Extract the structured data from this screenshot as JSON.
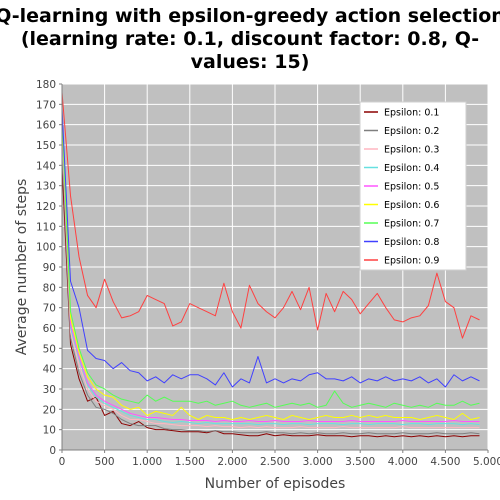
{
  "chart_data": {
    "type": "line",
    "title_lines": [
      "Q-learning with epsilon-greedy action selection",
      "(learning rate: 0.1, discount factor: 0.8, Q-",
      "values: 15)"
    ],
    "xlabel": "Number of episodes",
    "ylabel": "Average number of steps",
    "xlim": [
      0,
      5000
    ],
    "ylim": [
      0,
      180
    ],
    "xticks": [
      0,
      500,
      1000,
      1500,
      2000,
      2500,
      3000,
      3500,
      4000,
      4500,
      5000
    ],
    "xtick_labels": [
      "0",
      "500",
      "1.000",
      "1.500",
      "2.000",
      "2.500",
      "3.000",
      "3.500",
      "4.000",
      "4.500",
      "5.000"
    ],
    "yticks": [
      0,
      10,
      20,
      30,
      40,
      50,
      60,
      70,
      80,
      90,
      100,
      110,
      120,
      130,
      140,
      150,
      160,
      170,
      180
    ],
    "grid": true,
    "legend_position": "top-right",
    "plot_background": "#c0c0c0",
    "x": [
      0,
      100,
      200,
      300,
      400,
      500,
      600,
      700,
      800,
      900,
      1000,
      1100,
      1200,
      1300,
      1400,
      1500,
      1600,
      1700,
      1800,
      1900,
      2000,
      2100,
      2200,
      2300,
      2400,
      2500,
      2600,
      2700,
      2800,
      2900,
      3000,
      3100,
      3200,
      3300,
      3400,
      3500,
      3600,
      3700,
      3800,
      3900,
      4000,
      4100,
      4200,
      4300,
      4400,
      4500,
      4600,
      4700,
      4800,
      4900
    ],
    "series": [
      {
        "name": "Epsilon: 0.1",
        "color": "#8b0000",
        "values": [
          140,
          52,
          35,
          24,
          26,
          17,
          19,
          13,
          12,
          14,
          11,
          10,
          10,
          9.5,
          9,
          9,
          9,
          8.5,
          9.5,
          8,
          8,
          7.5,
          7,
          7,
          8,
          7,
          7.5,
          7,
          7,
          7,
          7.5,
          7,
          7,
          7,
          6.5,
          7,
          7,
          6.5,
          7,
          6.5,
          7,
          6.5,
          7,
          6.5,
          7,
          6.5,
          7,
          6.5,
          7,
          7
        ]
      },
      {
        "name": "Epsilon: 0.2",
        "color": "#7f7f7f",
        "values": [
          150,
          55,
          38,
          27,
          21,
          20,
          18,
          15,
          13,
          12,
          12,
          12,
          10.5,
          10,
          10,
          9.5,
          9.5,
          9,
          9.5,
          9,
          9,
          8.5,
          8.5,
          8.5,
          9,
          8.5,
          8.5,
          8,
          8.5,
          8,
          8.5,
          8,
          8,
          8.5,
          8,
          8,
          8.5,
          8,
          8,
          8,
          8.5,
          8,
          8,
          8,
          8.5,
          8,
          8,
          8,
          8.5,
          8
        ]
      },
      {
        "name": "Epsilon: 0.3",
        "color": "#ffb6c1",
        "values": [
          155,
          58,
          42,
          30,
          24,
          22,
          20,
          17,
          15,
          15,
          14,
          13,
          13,
          12.5,
          12,
          12,
          12,
          11.5,
          12,
          11.5,
          11.5,
          11,
          11.5,
          11,
          11.5,
          11,
          11,
          11,
          11.5,
          11,
          11,
          11,
          11,
          11.5,
          11,
          11,
          11,
          11,
          11,
          11,
          11.5,
          11,
          11,
          11,
          11,
          11,
          11,
          11,
          11,
          11
        ]
      },
      {
        "name": "Epsilon: 0.4",
        "color": "#66e0e0",
        "values": [
          158,
          60,
          45,
          32,
          26,
          23,
          21,
          19,
          17,
          16,
          15,
          15,
          14,
          13.5,
          14,
          13.5,
          13,
          13.5,
          13,
          13,
          13,
          13,
          13,
          12.5,
          13,
          13,
          12.5,
          13,
          13,
          12.5,
          13,
          13,
          13,
          12.5,
          13,
          13,
          12.5,
          13,
          13,
          13,
          12.5,
          13,
          13,
          12.5,
          13,
          13,
          13,
          12.5,
          13,
          12.5
        ]
      },
      {
        "name": "Epsilon: 0.5",
        "color": "#ff55ff",
        "values": [
          160,
          62,
          46,
          33,
          27,
          24,
          22,
          20,
          18,
          17,
          16,
          16,
          15.5,
          15,
          15,
          14.5,
          14.5,
          14.5,
          14,
          14.5,
          14,
          14,
          14.5,
          14,
          14,
          14.5,
          14,
          14,
          14,
          14.5,
          14,
          14,
          14,
          14,
          14.5,
          14,
          14,
          14,
          14,
          14,
          14.5,
          14,
          14,
          14,
          14,
          14,
          14.5,
          14,
          14,
          14
        ]
      },
      {
        "name": "Epsilon: 0.6",
        "color": "#ffff00",
        "values": [
          162,
          65,
          48,
          36,
          30,
          27,
          26,
          22,
          20,
          21,
          17,
          19,
          18,
          17,
          21,
          17,
          15,
          17,
          16,
          16,
          15,
          16,
          15,
          16,
          17,
          16,
          15,
          17,
          16,
          15,
          16,
          17,
          16,
          16,
          17,
          16,
          17,
          16,
          17,
          16,
          16,
          16,
          15,
          16,
          17,
          16,
          15,
          18,
          15,
          16
        ]
      },
      {
        "name": "Epsilon: 0.7",
        "color": "#55ff55",
        "values": [
          165,
          68,
          50,
          38,
          32,
          30,
          27,
          25,
          24,
          23,
          27,
          24,
          26,
          24,
          24,
          24,
          23,
          24,
          22,
          23,
          24,
          22,
          21,
          22,
          23,
          21,
          22,
          23,
          22,
          23,
          21,
          22,
          29,
          23,
          21,
          22,
          23,
          22,
          21,
          23,
          22,
          21,
          22,
          21,
          23,
          22,
          22,
          24,
          22,
          23
        ]
      },
      {
        "name": "Epsilon: 0.8",
        "color": "#4040ff",
        "values": [
          168,
          83,
          70,
          49,
          45,
          44,
          40,
          43,
          39,
          38,
          34,
          36,
          33,
          37,
          35,
          37,
          37,
          35,
          32,
          38,
          31,
          35,
          33,
          46,
          33,
          35,
          33,
          35,
          34,
          37,
          38,
          35,
          35,
          34,
          36,
          33,
          35,
          34,
          36,
          34,
          35,
          34,
          36,
          33,
          35,
          31,
          37,
          34,
          36,
          34
        ]
      },
      {
        "name": "Epsilon: 0.9",
        "color": "#ff4040",
        "values": [
          176,
          125,
          95,
          76,
          70,
          84,
          73,
          65,
          66,
          68,
          76,
          74,
          72,
          61,
          63,
          72,
          70,
          68,
          66,
          82,
          68,
          60,
          81,
          72,
          68,
          65,
          70,
          78,
          69,
          80,
          59,
          77,
          68,
          78,
          74,
          67,
          72,
          77,
          70,
          64,
          63,
          65,
          66,
          71,
          87,
          73,
          70,
          55,
          66,
          64
        ]
      }
    ]
  }
}
